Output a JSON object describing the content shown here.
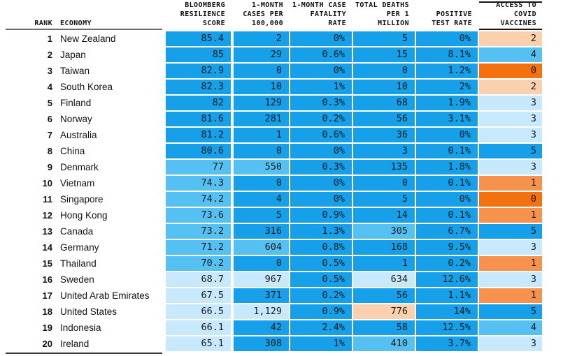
{
  "colors": {
    "b1": "#16a0e9",
    "b2": "#55c1f3",
    "b3": "#c8e8fc",
    "o1": "#fad0af",
    "o2": "#f6914e",
    "o3": "#f4710f"
  },
  "header": {
    "rank": "RANK",
    "economy": "ECONOMY",
    "score": "BLOOMBERG\nRESILIENCE\nSCORE",
    "cases": "1-MONTH\nCASES PER\n100,000",
    "fatality": "1-MONTH CASE\nFATALITY\nRATE",
    "deaths": "TOTAL DEATHS\nPER 1\nMILLION",
    "positive": "POSITIVE\nTEST RATE",
    "access": "ACCESS TO\nCOVID\nVACCINES"
  },
  "chart_data": {
    "type": "table",
    "columns": [
      "RANK",
      "ECONOMY",
      "BLOOMBERG RESILIENCE SCORE",
      "1-MONTH CASES PER 100,000",
      "1-MONTH CASE FATALITY RATE",
      "TOTAL DEATHS PER 1 MILLION",
      "POSITIVE TEST RATE",
      "ACCESS TO COVID VACCINES"
    ],
    "rows": [
      [
        "1",
        "New Zealand",
        "85.4",
        "2",
        "0%",
        "5",
        "0%",
        "2"
      ],
      [
        "2",
        "Japan",
        "85",
        "29",
        "0.6%",
        "15",
        "8.1%",
        "4"
      ],
      [
        "3",
        "Taiwan",
        "82.9",
        "0",
        "0%",
        "0",
        "1.2%",
        "0"
      ],
      [
        "4",
        "South Korea",
        "82.3",
        "10",
        "1%",
        "10",
        "2%",
        "2"
      ],
      [
        "5",
        "Finland",
        "82",
        "129",
        "0.3%",
        "68",
        "1.9%",
        "3"
      ],
      [
        "6",
        "Norway",
        "81.6",
        "281",
        "0.2%",
        "56",
        "3.1%",
        "3"
      ],
      [
        "7",
        "Australia",
        "81.2",
        "1",
        "0.6%",
        "36",
        "0%",
        "3"
      ],
      [
        "8",
        "China",
        "80.6",
        "0",
        "0%",
        "3",
        "0.1%",
        "5"
      ],
      [
        "9",
        "Denmark",
        "77",
        "550",
        "0.3%",
        "135",
        "1.8%",
        "3"
      ],
      [
        "10",
        "Vietnam",
        "74.3",
        "0",
        "0%",
        "0",
        "0.1%",
        "1"
      ],
      [
        "11",
        "Singapore",
        "74.2",
        "4",
        "0%",
        "5",
        "0%",
        "0"
      ],
      [
        "12",
        "Hong Kong",
        "73.6",
        "5",
        "0.9%",
        "14",
        "0.1%",
        "1"
      ],
      [
        "13",
        "Canada",
        "73.2",
        "316",
        "1.3%",
        "305",
        "6.7%",
        "5"
      ],
      [
        "14",
        "Germany",
        "71.2",
        "604",
        "0.8%",
        "168",
        "9.5%",
        "3"
      ],
      [
        "15",
        "Thailand",
        "70.2",
        "0",
        "0.5%",
        "1",
        "0.2%",
        "1"
      ],
      [
        "16",
        "Sweden",
        "68.7",
        "967",
        "0.5%",
        "634",
        "12.6%",
        "3"
      ],
      [
        "17",
        "United Arab Emirates",
        "67.5",
        "371",
        "0.2%",
        "56",
        "1.1%",
        "1"
      ],
      [
        "18",
        "United States",
        "66.5",
        "1,129",
        "0.9%",
        "776",
        "14%",
        "5"
      ],
      [
        "19",
        "Indonesia",
        "66.1",
        "42",
        "2.4%",
        "58",
        "12.5%",
        "4"
      ],
      [
        "20",
        "Ireland",
        "65.1",
        "308",
        "1%",
        "410",
        "3.7%",
        "3"
      ]
    ]
  },
  "shades": [
    [
      "b1",
      "b1",
      "b1",
      "b1",
      "b1",
      "o1"
    ],
    [
      "b1",
      "b1",
      "b1",
      "b1",
      "b1",
      "b2"
    ],
    [
      "b1",
      "b1",
      "b1",
      "b1",
      "b1",
      "o3"
    ],
    [
      "b1",
      "b1",
      "b1",
      "b1",
      "b1",
      "o1"
    ],
    [
      "b1",
      "b1",
      "b1",
      "b1",
      "b1",
      "b3"
    ],
    [
      "b1",
      "b1",
      "b1",
      "b1",
      "b1",
      "b3"
    ],
    [
      "b1",
      "b1",
      "b1",
      "b1",
      "b1",
      "b3"
    ],
    [
      "b1",
      "b1",
      "b1",
      "b1",
      "b1",
      "b1"
    ],
    [
      "b2",
      "b2",
      "b1",
      "b1",
      "b1",
      "b3"
    ],
    [
      "b2",
      "b1",
      "b1",
      "b1",
      "b1",
      "o2"
    ],
    [
      "b2",
      "b1",
      "b1",
      "b1",
      "b1",
      "o3"
    ],
    [
      "b2",
      "b1",
      "b1",
      "b1",
      "b1",
      "o2"
    ],
    [
      "b2",
      "b1",
      "b1",
      "b2",
      "b1",
      "b1"
    ],
    [
      "b2",
      "b2",
      "b1",
      "b1",
      "b1",
      "b3"
    ],
    [
      "b2",
      "b1",
      "b1",
      "b1",
      "b1",
      "o2"
    ],
    [
      "b3",
      "b3",
      "b1",
      "b3",
      "b1",
      "b3"
    ],
    [
      "b3",
      "b1",
      "b1",
      "b1",
      "b1",
      "o2"
    ],
    [
      "b3",
      "b3",
      "b1",
      "o1",
      "b1",
      "b1"
    ],
    [
      "b3",
      "b1",
      "b1",
      "b1",
      "b1",
      "b2"
    ],
    [
      "b3",
      "b1",
      "b1",
      "b2",
      "b1",
      "b3"
    ]
  ]
}
